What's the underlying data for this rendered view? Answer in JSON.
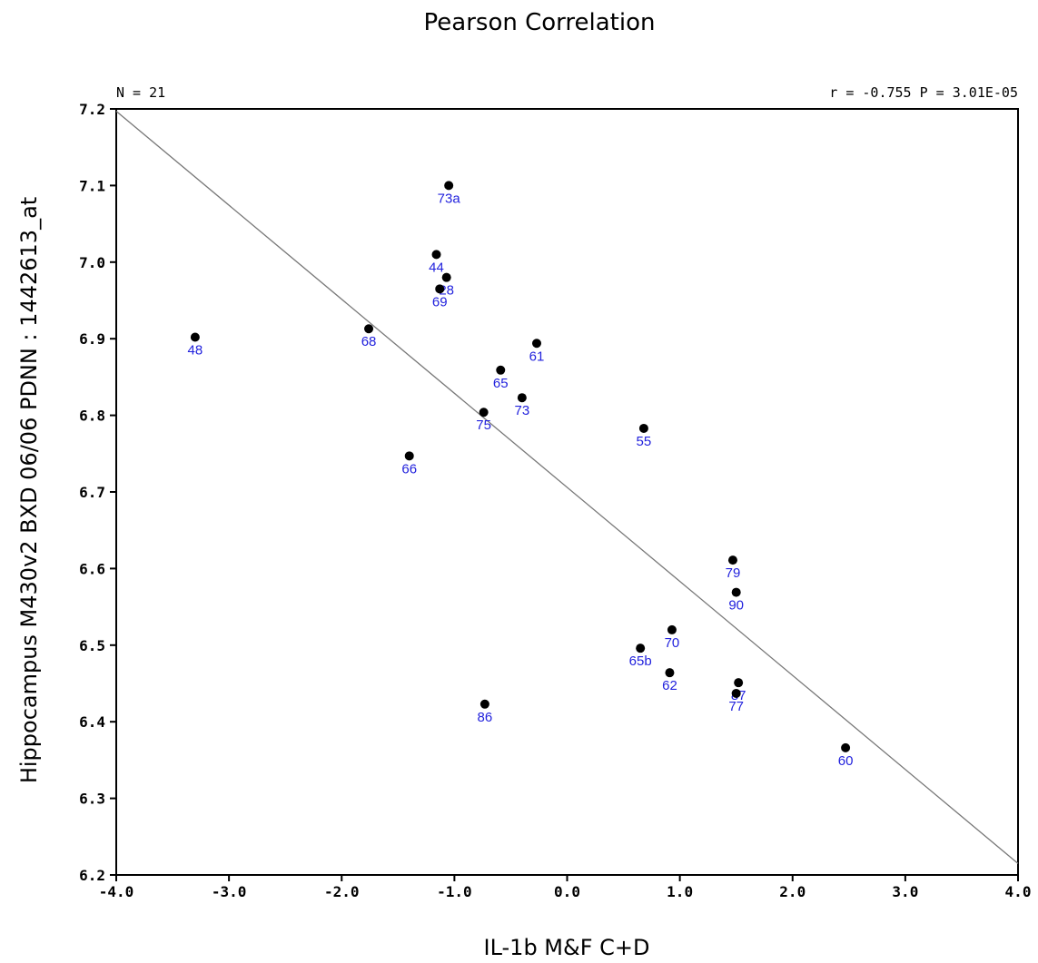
{
  "chart_data": {
    "type": "scatter",
    "title": "Pearson Correlation",
    "xlabel": "IL-1b M&F C+D",
    "ylabel": "Hippocampus M430v2 BXD 06/06 PDNN : 1442613_at",
    "n_label": "N = 21",
    "stats_label": "r = -0.755 P = 3.01E-05",
    "xlim": [
      -4.0,
      4.0
    ],
    "ylim": [
      6.2,
      7.2
    ],
    "x_ticks": [
      -4.0,
      -3.0,
      -2.0,
      -1.0,
      0.0,
      1.0,
      2.0,
      3.0,
      4.0
    ],
    "x_tick_labels": [
      "-4.0",
      "-3.0",
      "-2.0",
      "-1.0",
      "0.0",
      "1.0",
      "2.0",
      "3.0",
      "4.0"
    ],
    "y_ticks": [
      6.2,
      6.3,
      6.4,
      6.5,
      6.6,
      6.7,
      6.8,
      6.9,
      7.0,
      7.1,
      7.2
    ],
    "y_tick_labels": [
      "6.2",
      "6.3",
      "6.4",
      "6.5",
      "6.6",
      "6.7",
      "6.8",
      "6.9",
      "7.0",
      "7.1",
      "7.2"
    ],
    "regression_line": {
      "x": [
        -4.0,
        4.0
      ],
      "y": [
        7.197,
        6.215
      ]
    },
    "points": [
      {
        "label": "73a",
        "x": -1.05,
        "y": 7.1
      },
      {
        "label": "44",
        "x": -1.16,
        "y": 7.01
      },
      {
        "label": "28",
        "x": -1.07,
        "y": 6.98
      },
      {
        "label": "69",
        "x": -1.13,
        "y": 6.965
      },
      {
        "label": "48",
        "x": -3.3,
        "y": 6.902
      },
      {
        "label": "68",
        "x": -1.76,
        "y": 6.913
      },
      {
        "label": "61",
        "x": -0.27,
        "y": 6.894
      },
      {
        "label": "65",
        "x": -0.59,
        "y": 6.859
      },
      {
        "label": "73",
        "x": -0.4,
        "y": 6.823
      },
      {
        "label": "75",
        "x": -0.74,
        "y": 6.804
      },
      {
        "label": "55",
        "x": 0.68,
        "y": 6.783
      },
      {
        "label": "66",
        "x": -1.4,
        "y": 6.747
      },
      {
        "label": "79",
        "x": 1.47,
        "y": 6.611
      },
      {
        "label": "90",
        "x": 1.5,
        "y": 6.569
      },
      {
        "label": "70",
        "x": 0.93,
        "y": 6.52
      },
      {
        "label": "65b",
        "x": 0.65,
        "y": 6.496
      },
      {
        "label": "62",
        "x": 0.91,
        "y": 6.464
      },
      {
        "label": "87",
        "x": 1.52,
        "y": 6.451
      },
      {
        "label": "77",
        "x": 1.5,
        "y": 6.437
      },
      {
        "label": "86",
        "x": -0.73,
        "y": 6.423
      },
      {
        "label": "60",
        "x": 2.47,
        "y": 6.366
      }
    ]
  }
}
